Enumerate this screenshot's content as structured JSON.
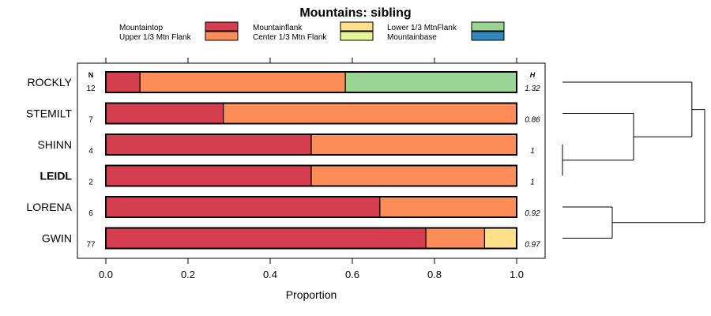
{
  "chart_data": {
    "type": "bar",
    "stacked": true,
    "orientation": "horizontal",
    "title": "Mountains: sibling",
    "xlabel": "Proportion",
    "ylabel": "",
    "xlim": [
      0,
      1
    ],
    "xticks": [
      "0.0",
      "0.2",
      "0.4",
      "0.6",
      "0.8",
      "1.0"
    ],
    "n_header": "N",
    "h_header": "H",
    "legend": {
      "placement": "top",
      "entries": [
        {
          "name": "Mountaintop",
          "color": "#d53e4f"
        },
        {
          "name": "Upper 1/3 Mtn Flank",
          "color": "#fc8d59"
        },
        {
          "name": "Mountainflank",
          "color": "#fee08b"
        },
        {
          "name": "Center 1/3 Mtn Flank",
          "color": "#e6f598"
        },
        {
          "name": "Lower 1/3 MtnFlank",
          "color": "#99d594"
        },
        {
          "name": "Mountainbase",
          "color": "#3288bd"
        }
      ]
    },
    "categories": [
      "ROCKLY",
      "STEMILT",
      "SHINN",
      "LEIDL",
      "LORENA",
      "GWIN"
    ],
    "highlighted_category": "LEIDL",
    "n": [
      "12",
      "7",
      "4",
      "2",
      "6",
      "77"
    ],
    "h": [
      "1.32",
      "0.86",
      "1",
      "1",
      "0.92",
      "0.97"
    ],
    "series": [
      {
        "name": "Mountaintop",
        "values": [
          0.083,
          0.286,
          0.5,
          0.5,
          0.667,
          0.779
        ]
      },
      {
        "name": "Upper 1/3 Mtn Flank",
        "values": [
          0.5,
          0.714,
          0.5,
          0.5,
          0.333,
          0.143
        ]
      },
      {
        "name": "Mountainflank",
        "values": [
          0,
          0,
          0,
          0,
          0,
          0.078
        ]
      },
      {
        "name": "Center 1/3 Mtn Flank",
        "values": [
          0,
          0,
          0,
          0,
          0,
          0
        ]
      },
      {
        "name": "Lower 1/3 MtnFlank",
        "values": [
          0.417,
          0,
          0,
          0,
          0,
          0
        ]
      },
      {
        "name": "Mountainbase",
        "values": [
          0,
          0,
          0,
          0,
          0,
          0
        ]
      }
    ],
    "dendrogram": {
      "merges": [
        {
          "left": "SHINN",
          "right": "LEIDL",
          "height": 0
        },
        {
          "left": "LORENA",
          "right": "GWIN",
          "height": 0.35
        },
        {
          "left": "STEMILT",
          "right": "SHINN+LEIDL",
          "height": 0.5
        },
        {
          "left": "ROCKLY",
          "right": "STEMILT+SHINN+LEIDL",
          "height": 0.91
        },
        {
          "left": "ROCKLY+STEMILT+SHINN+LEIDL",
          "right": "LORENA+GWIN",
          "height": 1
        }
      ]
    }
  }
}
